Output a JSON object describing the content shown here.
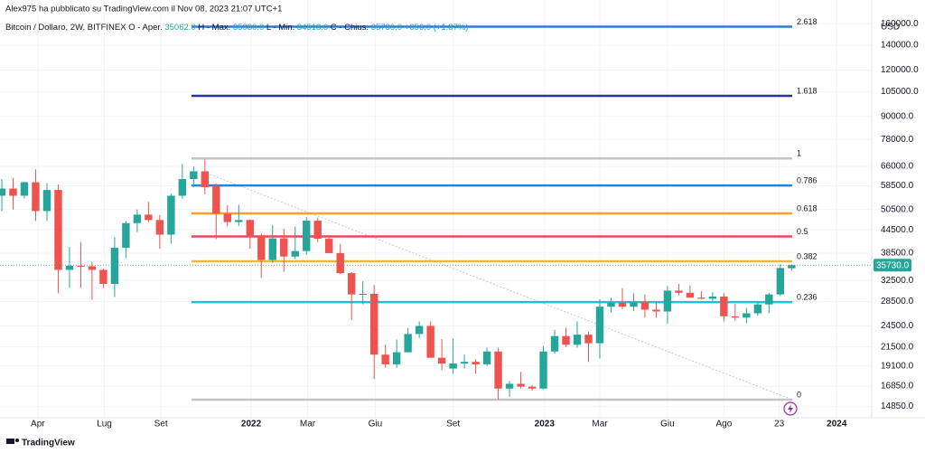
{
  "chart_data": {
    "type": "candlestick",
    "attribution": "Alex975 ha pubblicato su TradingView.com il Nov 08, 2023 21:07 UTC+1",
    "title": "Bitcoin / Dollaro, 2W, BITFINEX",
    "ohlc_legend": [
      {
        "key": "O",
        "name": "- Aper.",
        "value": "35062.0"
      },
      {
        "key": "H",
        "name": "- Max.",
        "value": "35930.0"
      },
      {
        "key": "L",
        "name": "- Min.",
        "value": "34518.0"
      },
      {
        "key": "C",
        "name": "- Chius.",
        "value": "35730.0"
      }
    ],
    "change_label": "+656.0 (+1.87%)",
    "currency": "USD",
    "last_price": 35730,
    "last_price_label": "35730.0",
    "footer": "TradingView",
    "log_scale": true,
    "grid": true,
    "up_color": "#26a69a",
    "down_color": "#ef5350",
    "ylim": [
      13850,
      185500
    ],
    "yticks": [
      {
        "value": 160000,
        "label": "160000.0"
      },
      {
        "value": 140000,
        "label": "140000.0"
      },
      {
        "value": 120000,
        "label": "120000.0"
      },
      {
        "value": 105000,
        "label": "105000.0"
      },
      {
        "value": 90000,
        "label": "90000.0"
      },
      {
        "value": 78000,
        "label": "78000.0"
      },
      {
        "value": 66000,
        "label": "66000.0"
      },
      {
        "value": 58500,
        "label": "58500.0"
      },
      {
        "value": 50500,
        "label": "50500.0"
      },
      {
        "value": 44500,
        "label": "44500.0"
      },
      {
        "value": 38500,
        "label": "38500.0"
      },
      {
        "value": 32500,
        "label": "32500.0"
      },
      {
        "value": 28500,
        "label": "28500.0"
      },
      {
        "value": 24500,
        "label": "24500.0"
      },
      {
        "value": 21500,
        "label": "21500.0"
      },
      {
        "value": 19100,
        "label": "19100.0"
      },
      {
        "value": 16850,
        "label": "16850.0"
      },
      {
        "value": 14850,
        "label": "14850.0"
      }
    ],
    "xlim": [
      -0.16,
      77.1
    ],
    "xticks": [
      {
        "value": 3.19,
        "label": "Apr"
      },
      {
        "value": 9.09,
        "label": "Lug"
      },
      {
        "value": 14.1,
        "label": "Set"
      },
      {
        "value": 22.1,
        "label": "2022"
      },
      {
        "value": 27.1,
        "label": "Mar"
      },
      {
        "value": 33.1,
        "label": "Giu"
      },
      {
        "value": 40.0,
        "label": "Set"
      },
      {
        "value": 48.1,
        "label": "2023"
      },
      {
        "value": 53.0,
        "label": "Mar"
      },
      {
        "value": 59.0,
        "label": "Giu"
      },
      {
        "value": 64.0,
        "label": "Ago"
      },
      {
        "value": 68.9,
        "label": "23"
      },
      {
        "value": 74.0,
        "label": "2024"
      }
    ],
    "open": [
      55000,
      57500,
      55000,
      59800,
      50000,
      57000,
      34700,
      35600,
      35500,
      34700,
      31800,
      39800,
      46400,
      48900,
      47300,
      43200,
      55000,
      61000,
      64000,
      58500,
      49200,
      46700,
      47300,
      43000,
      36900,
      42200,
      37700,
      39000,
      47100,
      42100,
      38500,
      34000,
      29800,
      29900,
      20500,
      19300,
      20800,
      23300,
      24500,
      20100,
      18800,
      19400,
      19600,
      19300,
      20900,
      16600,
      17100,
      16800,
      16600,
      20900,
      23000,
      21800,
      23200,
      22000,
      27600,
      28300,
      27600,
      28400,
      27100,
      26800,
      30500,
      30100,
      29200,
      29000,
      29400,
      26000,
      25800,
      26500,
      28000,
      29800,
      35062
    ],
    "high": [
      61000,
      61500,
      60000,
      64800,
      59500,
      59000,
      40000,
      41300,
      36500,
      35000,
      42500,
      47000,
      50500,
      52900,
      48800,
      55700,
      67000,
      66000,
      69000,
      59300,
      51900,
      52000,
      47500,
      43500,
      45800,
      44800,
      45400,
      48200,
      48000,
      43000,
      40800,
      34200,
      32300,
      31600,
      21800,
      22500,
      24200,
      25200,
      25200,
      22600,
      22600,
      20500,
      19900,
      21400,
      21400,
      17400,
      18400,
      17000,
      21600,
      23900,
      24200,
      25200,
      23600,
      28900,
      29200,
      31000,
      30000,
      29800,
      28400,
      31400,
      31800,
      31500,
      30400,
      30200,
      30000,
      28100,
      27400,
      28600,
      30100,
      35900,
      35930
    ],
    "low": [
      50000,
      50500,
      54000,
      47000,
      47000,
      30000,
      31000,
      31000,
      28800,
      31000,
      29300,
      37300,
      43900,
      46700,
      39600,
      40800,
      54000,
      58000,
      55500,
      42000,
      45500,
      45600,
      39600,
      33000,
      36300,
      34300,
      37100,
      38100,
      41200,
      38600,
      33800,
      25400,
      28000,
      17600,
      18900,
      18900,
      20800,
      22700,
      20800,
      18600,
      18200,
      18800,
      18200,
      19100,
      15500,
      15800,
      16600,
      16400,
      16500,
      20600,
      21500,
      21400,
      19600,
      20000,
      26600,
      27200,
      26900,
      25800,
      25800,
      24800,
      29600,
      29700,
      28900,
      28600,
      25200,
      25300,
      24900,
      26100,
      26500,
      29500,
      34518
    ],
    "close": [
      57500,
      55000,
      59800,
      50000,
      57000,
      34700,
      35600,
      35500,
      34700,
      31800,
      39800,
      46400,
      48900,
      47300,
      43200,
      55000,
      61000,
      64000,
      58000,
      49200,
      46700,
      47300,
      43000,
      36900,
      42200,
      37700,
      39000,
      47100,
      42100,
      38500,
      34000,
      29800,
      29900,
      20500,
      19300,
      20800,
      23300,
      24500,
      20100,
      19400,
      19400,
      19600,
      19300,
      20900,
      16600,
      17100,
      16800,
      16600,
      20900,
      23000,
      21800,
      23200,
      22000,
      27600,
      28300,
      27600,
      28400,
      27100,
      26800,
      30500,
      30100,
      29200,
      29000,
      29400,
      26000,
      25800,
      26500,
      28000,
      29800,
      35100,
      35730
    ],
    "fib": [
      {
        "label": "2.618",
        "value": 157200,
        "color": "#2e7bd6"
      },
      {
        "label": "1.618",
        "value": 102300,
        "color": "#2e2ea8"
      },
      {
        "label": "1",
        "value": 69300,
        "color": "#c4c4c4"
      },
      {
        "label": "0.786",
        "value": 58600,
        "color": "#1e88d8"
      },
      {
        "label": "0.618",
        "value": 49300,
        "color": "#f7a128"
      },
      {
        "label": "0.5",
        "value": 42700,
        "color": "#e84a5f"
      },
      {
        "label": "0.382",
        "value": 36600,
        "color": "#f5b731"
      },
      {
        "label": "0.236",
        "value": 28400,
        "color": "#22bfd6"
      },
      {
        "label": "0",
        "value": 15500,
        "color": "#c4c4c4"
      }
    ]
  }
}
